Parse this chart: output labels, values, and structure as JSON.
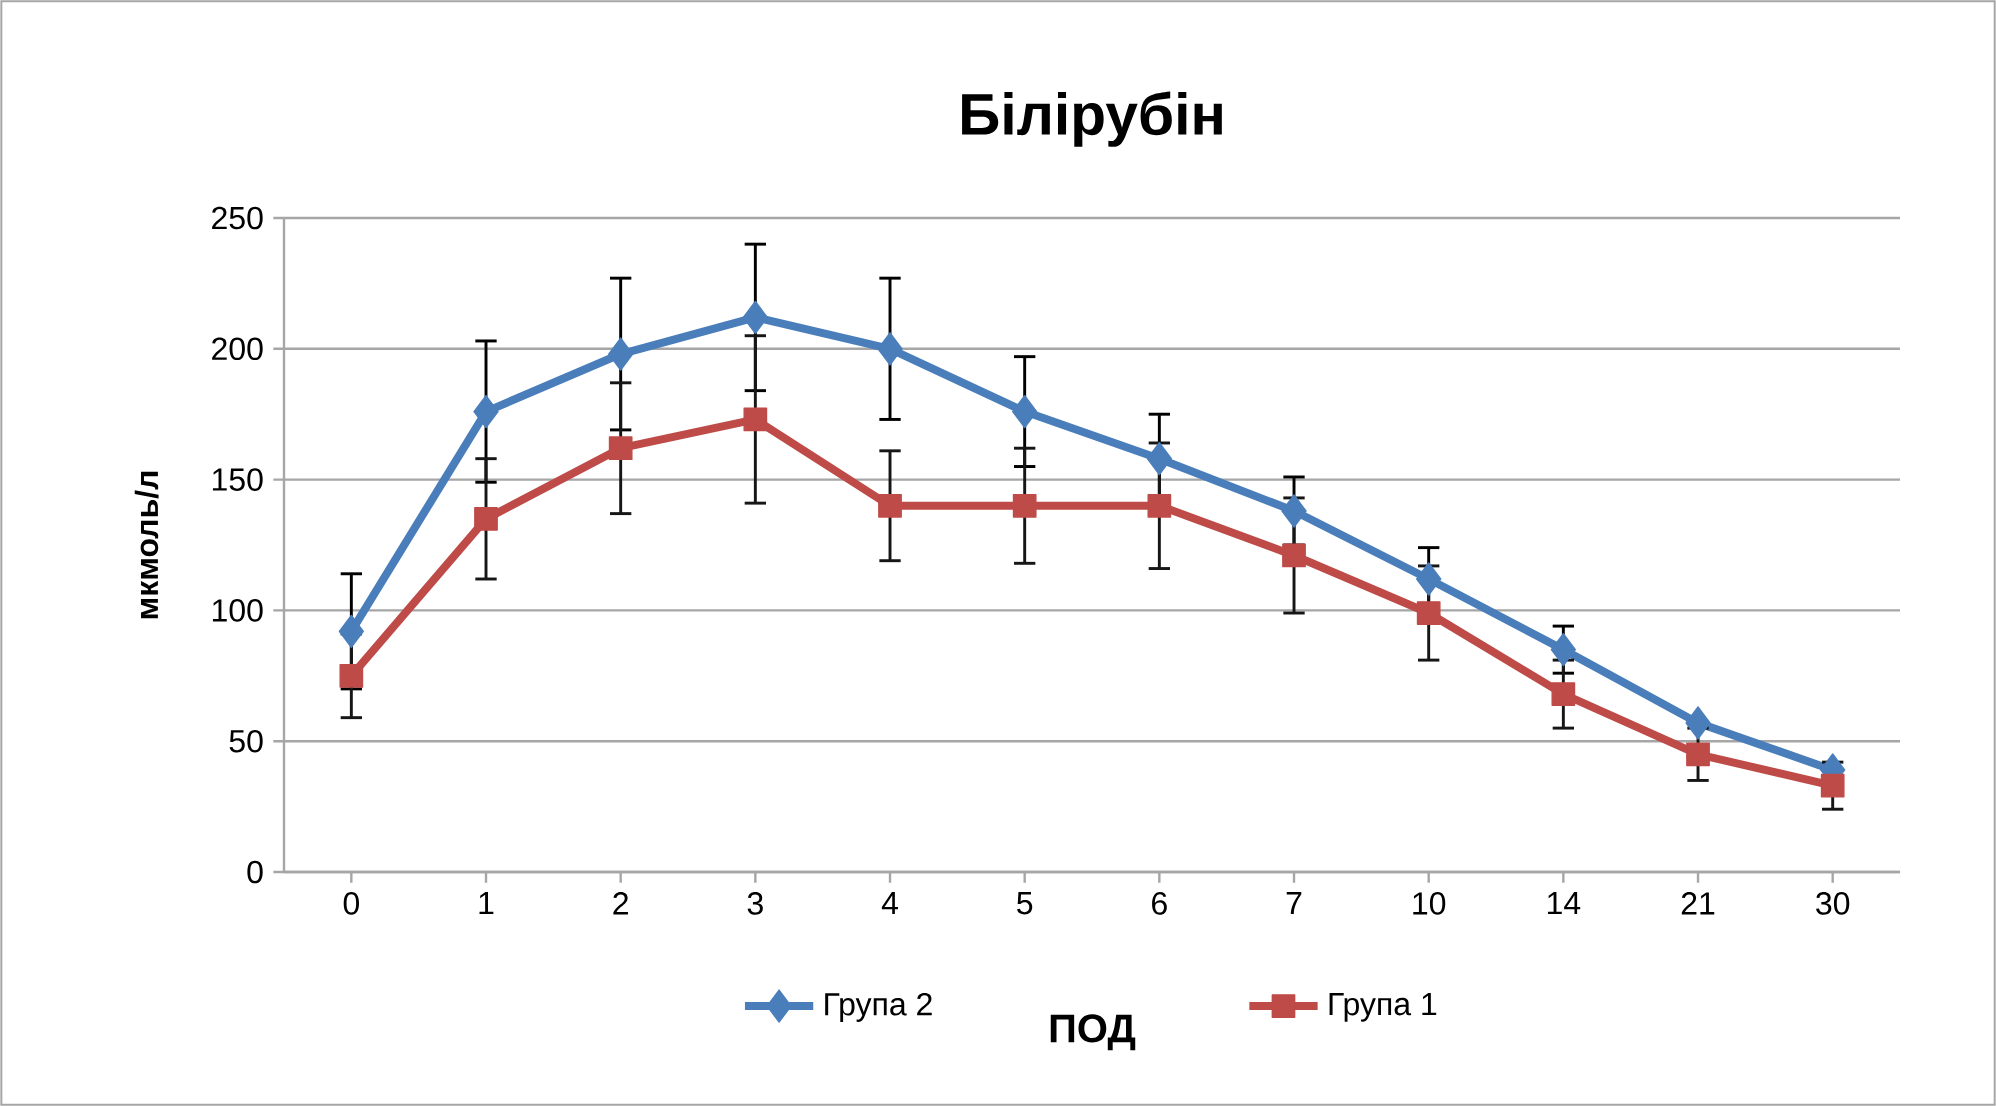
{
  "chart_data": {
    "type": "line",
    "title": "Білірубін",
    "xlabel": "ПОД",
    "ylabel": "мкмоль/л",
    "categories": [
      "0",
      "1",
      "2",
      "3",
      "4",
      "5",
      "6",
      "7",
      "10",
      "14",
      "21",
      "30"
    ],
    "series": [
      {
        "name": "Група 2",
        "color": "#4a7ebb",
        "marker": "diamond",
        "values": [
          92,
          176,
          198,
          212,
          200,
          176,
          158,
          138,
          112,
          85,
          57,
          39
        ],
        "errors": [
          22,
          27,
          29,
          28,
          27,
          21,
          17,
          13,
          12,
          9,
          null,
          null
        ]
      },
      {
        "name": "Група 1",
        "color": "#be4b48",
        "marker": "square",
        "values": [
          75,
          135,
          162,
          173,
          140,
          140,
          140,
          121,
          99,
          68,
          45,
          33
        ],
        "errors": [
          16,
          23,
          25,
          32,
          21,
          22,
          24,
          22,
          18,
          13,
          10,
          9
        ]
      }
    ],
    "ylim": [
      0,
      250
    ],
    "yticks": [
      0,
      50,
      100,
      150,
      200,
      250
    ],
    "grid": "y",
    "legend": "bottom",
    "line_style": "solid"
  }
}
